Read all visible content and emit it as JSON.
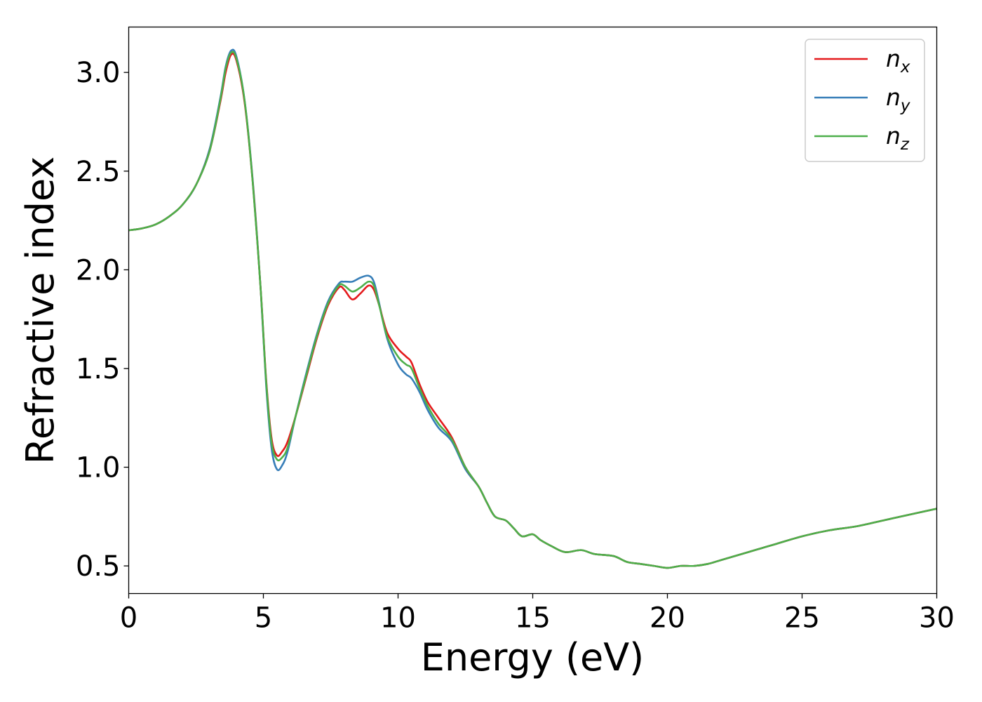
{
  "chart_data": {
    "type": "line",
    "title": "",
    "xlabel": "Energy (eV)",
    "ylabel": "Refractive index",
    "xlim": [
      0,
      30
    ],
    "ylim": [
      0.36,
      3.23
    ],
    "xticks": [
      0,
      5,
      10,
      15,
      20,
      25,
      30
    ],
    "xtick_labels": [
      "0",
      "5",
      "10",
      "15",
      "20",
      "25",
      "30"
    ],
    "yticks": [
      0.5,
      1.0,
      1.5,
      2.0,
      2.5,
      3.0
    ],
    "ytick_labels": [
      "0.5",
      "1.0",
      "1.5",
      "2.0",
      "2.5",
      "3.0"
    ],
    "grid": false,
    "legend_position": "top-right",
    "series": [
      {
        "name": "n",
        "subscript": "x",
        "color": "#e41a1c",
        "points": [
          [
            0,
            2.2
          ],
          [
            0.5,
            2.21
          ],
          [
            1,
            2.23
          ],
          [
            1.5,
            2.27
          ],
          [
            2,
            2.33
          ],
          [
            2.5,
            2.43
          ],
          [
            3,
            2.6
          ],
          [
            3.4,
            2.85
          ],
          [
            3.6,
            3.0
          ],
          [
            3.8,
            3.09
          ],
          [
            4.0,
            3.06
          ],
          [
            4.3,
            2.85
          ],
          [
            4.6,
            2.45
          ],
          [
            4.9,
            1.9
          ],
          [
            5.1,
            1.45
          ],
          [
            5.3,
            1.15
          ],
          [
            5.5,
            1.06
          ],
          [
            5.7,
            1.08
          ],
          [
            5.9,
            1.13
          ],
          [
            6.2,
            1.26
          ],
          [
            6.6,
            1.46
          ],
          [
            7.0,
            1.66
          ],
          [
            7.4,
            1.82
          ],
          [
            7.8,
            1.91
          ],
          [
            8.0,
            1.9
          ],
          [
            8.3,
            1.85
          ],
          [
            8.6,
            1.88
          ],
          [
            8.9,
            1.92
          ],
          [
            9.1,
            1.9
          ],
          [
            9.3,
            1.82
          ],
          [
            9.6,
            1.68
          ],
          [
            10.0,
            1.6
          ],
          [
            10.3,
            1.56
          ],
          [
            10.5,
            1.53
          ],
          [
            10.8,
            1.42
          ],
          [
            11.1,
            1.33
          ],
          [
            11.5,
            1.25
          ],
          [
            12.0,
            1.15
          ],
          [
            12.5,
            1.0
          ],
          [
            13.0,
            0.9
          ],
          [
            13.3,
            0.82
          ],
          [
            13.6,
            0.75
          ],
          [
            14.0,
            0.73
          ],
          [
            14.3,
            0.69
          ],
          [
            14.6,
            0.65
          ],
          [
            15.0,
            0.66
          ],
          [
            15.3,
            0.63
          ],
          [
            15.7,
            0.6
          ],
          [
            16.2,
            0.57
          ],
          [
            16.8,
            0.58
          ],
          [
            17.3,
            0.56
          ],
          [
            18.0,
            0.55
          ],
          [
            18.5,
            0.52
          ],
          [
            19.0,
            0.51
          ],
          [
            19.5,
            0.5
          ],
          [
            20.0,
            0.49
          ],
          [
            20.5,
            0.5
          ],
          [
            21.0,
            0.5
          ],
          [
            21.5,
            0.51
          ],
          [
            22.0,
            0.53
          ],
          [
            22.5,
            0.55
          ],
          [
            23.0,
            0.57
          ],
          [
            23.5,
            0.59
          ],
          [
            24.0,
            0.61
          ],
          [
            25.0,
            0.65
          ],
          [
            26.0,
            0.68
          ],
          [
            27.0,
            0.7
          ],
          [
            28.0,
            0.73
          ],
          [
            29.0,
            0.76
          ],
          [
            30.0,
            0.79
          ]
        ]
      },
      {
        "name": "n",
        "subscript": "y",
        "color": "#377eb8",
        "points": [
          [
            0,
            2.2
          ],
          [
            0.5,
            2.21
          ],
          [
            1,
            2.23
          ],
          [
            1.5,
            2.27
          ],
          [
            2,
            2.33
          ],
          [
            2.5,
            2.43
          ],
          [
            3,
            2.61
          ],
          [
            3.4,
            2.87
          ],
          [
            3.6,
            3.03
          ],
          [
            3.8,
            3.11
          ],
          [
            4.0,
            3.08
          ],
          [
            4.3,
            2.86
          ],
          [
            4.6,
            2.46
          ],
          [
            4.9,
            1.9
          ],
          [
            5.1,
            1.42
          ],
          [
            5.3,
            1.1
          ],
          [
            5.5,
            0.99
          ],
          [
            5.7,
            1.01
          ],
          [
            5.9,
            1.08
          ],
          [
            6.2,
            1.26
          ],
          [
            6.6,
            1.48
          ],
          [
            7.0,
            1.68
          ],
          [
            7.4,
            1.84
          ],
          [
            7.8,
            1.93
          ],
          [
            8.0,
            1.94
          ],
          [
            8.3,
            1.94
          ],
          [
            8.6,
            1.96
          ],
          [
            8.9,
            1.97
          ],
          [
            9.1,
            1.94
          ],
          [
            9.3,
            1.83
          ],
          [
            9.6,
            1.65
          ],
          [
            10.0,
            1.52
          ],
          [
            10.3,
            1.47
          ],
          [
            10.5,
            1.45
          ],
          [
            10.8,
            1.38
          ],
          [
            11.1,
            1.29
          ],
          [
            11.5,
            1.2
          ],
          [
            12.0,
            1.13
          ],
          [
            12.5,
            0.99
          ],
          [
            13.0,
            0.9
          ],
          [
            13.3,
            0.82
          ],
          [
            13.6,
            0.75
          ],
          [
            14.0,
            0.73
          ],
          [
            14.3,
            0.69
          ],
          [
            14.6,
            0.65
          ],
          [
            15.0,
            0.66
          ],
          [
            15.3,
            0.63
          ],
          [
            15.7,
            0.6
          ],
          [
            16.2,
            0.57
          ],
          [
            16.8,
            0.58
          ],
          [
            17.3,
            0.56
          ],
          [
            18.0,
            0.55
          ],
          [
            18.5,
            0.52
          ],
          [
            19.0,
            0.51
          ],
          [
            19.5,
            0.5
          ],
          [
            20.0,
            0.49
          ],
          [
            20.5,
            0.5
          ],
          [
            21.0,
            0.5
          ],
          [
            21.5,
            0.51
          ],
          [
            22.0,
            0.53
          ],
          [
            22.5,
            0.55
          ],
          [
            23.0,
            0.57
          ],
          [
            23.5,
            0.59
          ],
          [
            24.0,
            0.61
          ],
          [
            25.0,
            0.65
          ],
          [
            26.0,
            0.68
          ],
          [
            27.0,
            0.7
          ],
          [
            28.0,
            0.73
          ],
          [
            29.0,
            0.76
          ],
          [
            30.0,
            0.79
          ]
        ]
      },
      {
        "name": "n",
        "subscript": "z",
        "color": "#4daf4a",
        "points": [
          [
            0,
            2.2
          ],
          [
            0.5,
            2.21
          ],
          [
            1,
            2.23
          ],
          [
            1.5,
            2.27
          ],
          [
            2,
            2.33
          ],
          [
            2.5,
            2.43
          ],
          [
            3,
            2.6
          ],
          [
            3.4,
            2.86
          ],
          [
            3.6,
            3.02
          ],
          [
            3.8,
            3.1
          ],
          [
            4.0,
            3.07
          ],
          [
            4.3,
            2.86
          ],
          [
            4.6,
            2.45
          ],
          [
            4.9,
            1.9
          ],
          [
            5.1,
            1.44
          ],
          [
            5.3,
            1.13
          ],
          [
            5.5,
            1.04
          ],
          [
            5.7,
            1.05
          ],
          [
            5.9,
            1.1
          ],
          [
            6.2,
            1.26
          ],
          [
            6.6,
            1.47
          ],
          [
            7.0,
            1.67
          ],
          [
            7.4,
            1.83
          ],
          [
            7.8,
            1.92
          ],
          [
            8.0,
            1.92
          ],
          [
            8.3,
            1.89
          ],
          [
            8.6,
            1.91
          ],
          [
            8.9,
            1.94
          ],
          [
            9.1,
            1.92
          ],
          [
            9.3,
            1.82
          ],
          [
            9.6,
            1.66
          ],
          [
            10.0,
            1.56
          ],
          [
            10.3,
            1.52
          ],
          [
            10.5,
            1.5
          ],
          [
            10.8,
            1.4
          ],
          [
            11.1,
            1.31
          ],
          [
            11.5,
            1.22
          ],
          [
            12.0,
            1.14
          ],
          [
            12.5,
            1.0
          ],
          [
            13.0,
            0.9
          ],
          [
            13.3,
            0.82
          ],
          [
            13.6,
            0.75
          ],
          [
            14.0,
            0.73
          ],
          [
            14.3,
            0.69
          ],
          [
            14.6,
            0.65
          ],
          [
            15.0,
            0.66
          ],
          [
            15.3,
            0.63
          ],
          [
            15.7,
            0.6
          ],
          [
            16.2,
            0.57
          ],
          [
            16.8,
            0.58
          ],
          [
            17.3,
            0.56
          ],
          [
            18.0,
            0.55
          ],
          [
            18.5,
            0.52
          ],
          [
            19.0,
            0.51
          ],
          [
            19.5,
            0.5
          ],
          [
            20.0,
            0.49
          ],
          [
            20.5,
            0.5
          ],
          [
            21.0,
            0.5
          ],
          [
            21.5,
            0.51
          ],
          [
            22.0,
            0.53
          ],
          [
            22.5,
            0.55
          ],
          [
            23.0,
            0.57
          ],
          [
            23.5,
            0.59
          ],
          [
            24.0,
            0.61
          ],
          [
            25.0,
            0.65
          ],
          [
            26.0,
            0.68
          ],
          [
            27.0,
            0.7
          ],
          [
            28.0,
            0.73
          ],
          [
            29.0,
            0.76
          ],
          [
            30.0,
            0.79
          ]
        ]
      }
    ]
  }
}
